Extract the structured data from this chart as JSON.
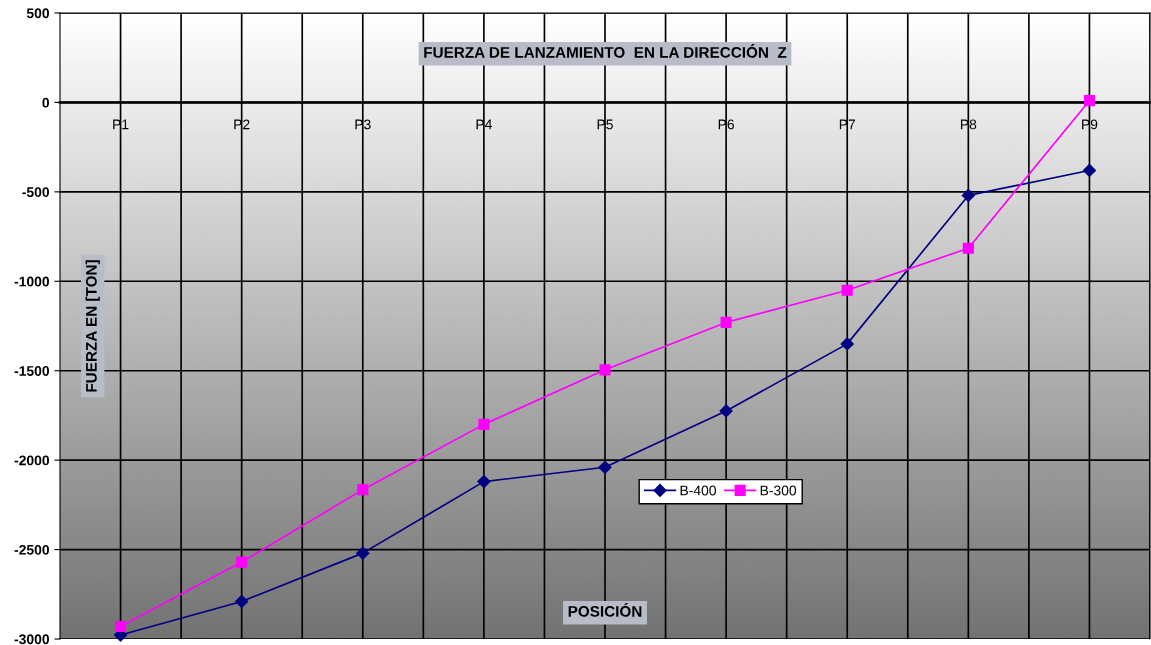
{
  "chart_data": {
    "type": "line",
    "title": "FUERZA DE LANZAMIENTO  EN LA DIRECCIÓN  Z",
    "xlabel": "POSICIÓN",
    "ylabel": "FUERZA EN [TON]",
    "categories": [
      "P1",
      "P2",
      "P3",
      "P4",
      "P5",
      "P6",
      "P7",
      "P8",
      "P9"
    ],
    "series": [
      {
        "name": "B-400",
        "color": "#000080",
        "marker": "diamond",
        "values": [
          -2978,
          -2790,
          -2520,
          -2120,
          -2040,
          -1725,
          -1350,
          -520,
          -380
        ]
      },
      {
        "name": "B-300",
        "color": "#ff00ff",
        "marker": "square",
        "values": [
          -2930,
          -2570,
          -2165,
          -1800,
          -1495,
          -1230,
          -1050,
          -815,
          10
        ]
      }
    ],
    "ylim": [
      -3000,
      500
    ],
    "yticks": [
      -3000,
      -2500,
      -2000,
      -1500,
      -1000,
      -500,
      0,
      500
    ],
    "grid": true,
    "legend": "bottom right"
  }
}
